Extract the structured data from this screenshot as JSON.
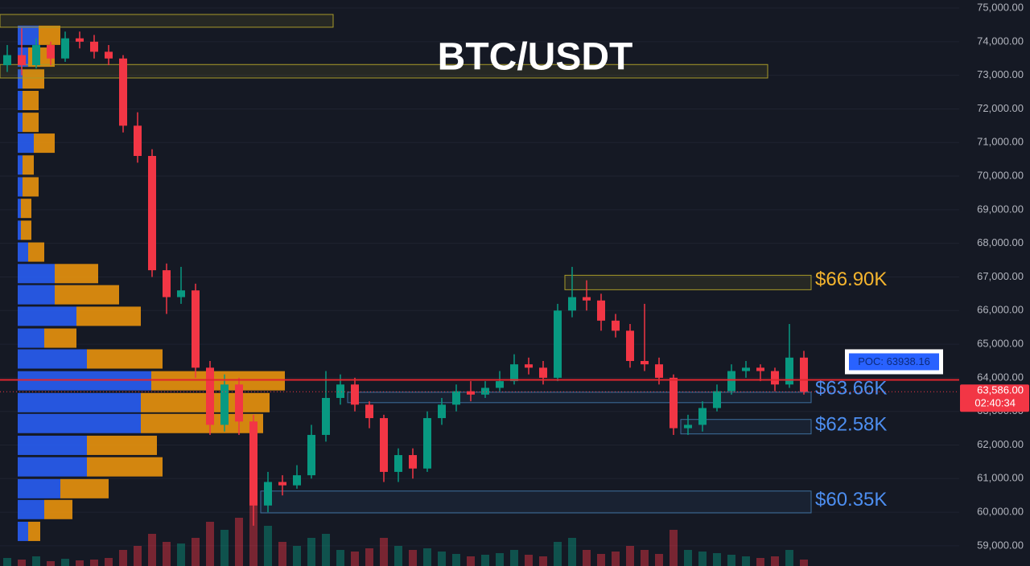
{
  "chart_data": {
    "type": "candlestick",
    "title": "BTC/USDT",
    "ylim": [
      58400,
      75240
    ],
    "yticks": [
      {
        "value": 59000,
        "label": "59,000.00"
      },
      {
        "value": 60000,
        "label": "60,000.00"
      },
      {
        "value": 61000,
        "label": "61,000.00"
      },
      {
        "value": 62000,
        "label": "62,000.00"
      },
      {
        "value": 63000,
        "label": "63,000.00"
      },
      {
        "value": 64000,
        "label": "64,000.00"
      },
      {
        "value": 65000,
        "label": "65,000.00"
      },
      {
        "value": 66000,
        "label": "66,000.00"
      },
      {
        "value": 67000,
        "label": "67,000.00"
      },
      {
        "value": 68000,
        "label": "68,000.00"
      },
      {
        "value": 69000,
        "label": "69,000.00"
      },
      {
        "value": 70000,
        "label": "70,000.00"
      },
      {
        "value": 71000,
        "label": "71,000.00"
      },
      {
        "value": 72000,
        "label": "72,000.00"
      },
      {
        "value": 73000,
        "label": "73,000.00"
      },
      {
        "value": 74000,
        "label": "74,000.00"
      },
      {
        "value": 75000,
        "label": "75,000.00"
      }
    ],
    "grid": true,
    "up_color": "#089981",
    "down_color": "#f23645",
    "open": [
      73300,
      73600,
      73300,
      73900,
      73500,
      74100,
      74000,
      73700,
      73500,
      71500,
      70600,
      67200,
      66400,
      66600,
      64300,
      62600,
      63800,
      62700,
      60200,
      60900,
      60800,
      61100,
      62300,
      63400,
      63800,
      63200,
      62800,
      61200,
      61700,
      61300,
      62800,
      63200,
      63600,
      63500,
      63700,
      63900,
      64400,
      64300,
      64000,
      66000,
      66400,
      66300,
      65700,
      65400,
      64500,
      64400,
      64000,
      62500,
      62600,
      63100,
      63600,
      64200,
      64300,
      64200,
      63800,
      64600
    ],
    "high": [
      73900,
      74400,
      74100,
      74000,
      74300,
      74300,
      74200,
      73900,
      73600,
      71900,
      70800,
      67400,
      67300,
      66800,
      64500,
      64100,
      64000,
      62900,
      61200,
      61100,
      61400,
      62600,
      64200,
      64100,
      64000,
      63300,
      62900,
      61900,
      61900,
      63000,
      63400,
      63800,
      63900,
      63900,
      64200,
      64700,
      64600,
      64500,
      66200,
      67300,
      66900,
      66500,
      65900,
      65600,
      66200,
      64600,
      64100,
      62900,
      63300,
      63800,
      64400,
      64500,
      64400,
      64300,
      65600,
      64800
    ],
    "low": [
      73100,
      73000,
      73200,
      73300,
      73400,
      73800,
      73500,
      73300,
      71300,
      70400,
      67000,
      65900,
      66200,
      64000,
      62300,
      62400,
      62300,
      59600,
      60000,
      60500,
      60700,
      61000,
      62100,
      63200,
      63000,
      62500,
      60900,
      60900,
      61000,
      61200,
      62600,
      63000,
      63300,
      63400,
      63600,
      63800,
      64100,
      63800,
      63900,
      65800,
      66000,
      65400,
      65200,
      64300,
      64200,
      63800,
      62300,
      62300,
      62400,
      63000,
      63500,
      64000,
      63900,
      63600,
      63700,
      63500
    ],
    "close": [
      73600,
      73300,
      73900,
      73500,
      74100,
      74000,
      73700,
      73500,
      71500,
      70600,
      67200,
      66400,
      66600,
      64300,
      62600,
      63800,
      62700,
      60200,
      60900,
      60800,
      61100,
      62300,
      63400,
      63800,
      63200,
      62800,
      61200,
      61700,
      61300,
      62800,
      63200,
      63600,
      63500,
      63700,
      63900,
      64400,
      64300,
      64000,
      66000,
      66400,
      66300,
      65700,
      65400,
      64500,
      64400,
      64000,
      62500,
      62600,
      63100,
      63600,
      64200,
      64300,
      64200,
      63800,
      64600,
      63586
    ],
    "volume": [
      10,
      8,
      12,
      6,
      9,
      7,
      8,
      10,
      20,
      25,
      40,
      30,
      28,
      35,
      55,
      45,
      60,
      80,
      50,
      30,
      25,
      35,
      40,
      20,
      18,
      22,
      35,
      25,
      20,
      22,
      18,
      15,
      12,
      14,
      16,
      20,
      14,
      12,
      30,
      35,
      20,
      15,
      18,
      25,
      20,
      15,
      45,
      20,
      18,
      16,
      14,
      12,
      10,
      12,
      20,
      8
    ],
    "volume_profile": {
      "buy_color": "#2962ff",
      "sell_color": "#f59a0c",
      "price": [
        59430,
        60080,
        60700,
        61350,
        61990,
        62640,
        63260,
        63910,
        64560,
        65180,
        65830,
        66470,
        67100,
        67740,
        68390,
        69040,
        69680,
        70330,
        70980,
        71600,
        72250,
        72890,
        73540,
        74190
      ],
      "buy": [
        13,
        33,
        53,
        86,
        86,
        153,
        153,
        166,
        86,
        33,
        73,
        46,
        46,
        13,
        4,
        4,
        6,
        6,
        20,
        6,
        6,
        6,
        13,
        26
      ],
      "sell": [
        15,
        35,
        60,
        94,
        87,
        152,
        160,
        166,
        94,
        40,
        80,
        80,
        54,
        20,
        13,
        13,
        20,
        14,
        26,
        20,
        20,
        27,
        33,
        27
      ]
    },
    "zones": [
      {
        "low": 74430,
        "high": 74810,
        "start": 0,
        "end": 22,
        "color": "#a89a2a"
      },
      {
        "low": 72920,
        "high": 73320,
        "start": 0,
        "end": 52,
        "color": "#a89a2a"
      },
      {
        "low": 66620,
        "high": 67050,
        "start": 39,
        "end": 55,
        "color": "#a89a2a",
        "level": 66900,
        "label": "$66.90K",
        "label_color": "#f5b52e"
      },
      {
        "low": 63260,
        "high": 63570,
        "start": 24,
        "end": 55,
        "color": "#3d6f9e",
        "level": 63660,
        "label": "$63.66K",
        "label_color": "#4d8ef0"
      },
      {
        "low": 62330,
        "high": 62760,
        "start": 47,
        "end": 55,
        "color": "#3d6f9e",
        "level": 62580,
        "label": "$62.58K",
        "label_color": "#4d8ef0"
      },
      {
        "low": 59980,
        "high": 60630,
        "start": 18,
        "end": 55,
        "color": "#3d6f9e",
        "level": 60350,
        "label": "$60.35K",
        "label_color": "#4d8ef0"
      }
    ],
    "poc": {
      "value": 63938.16,
      "label": "POC: 63938.16",
      "color": "#e0262e"
    },
    "current_price": {
      "value": 63586,
      "label": "63,586.00",
      "countdown": "02:40:34",
      "color": "#f23645"
    }
  }
}
